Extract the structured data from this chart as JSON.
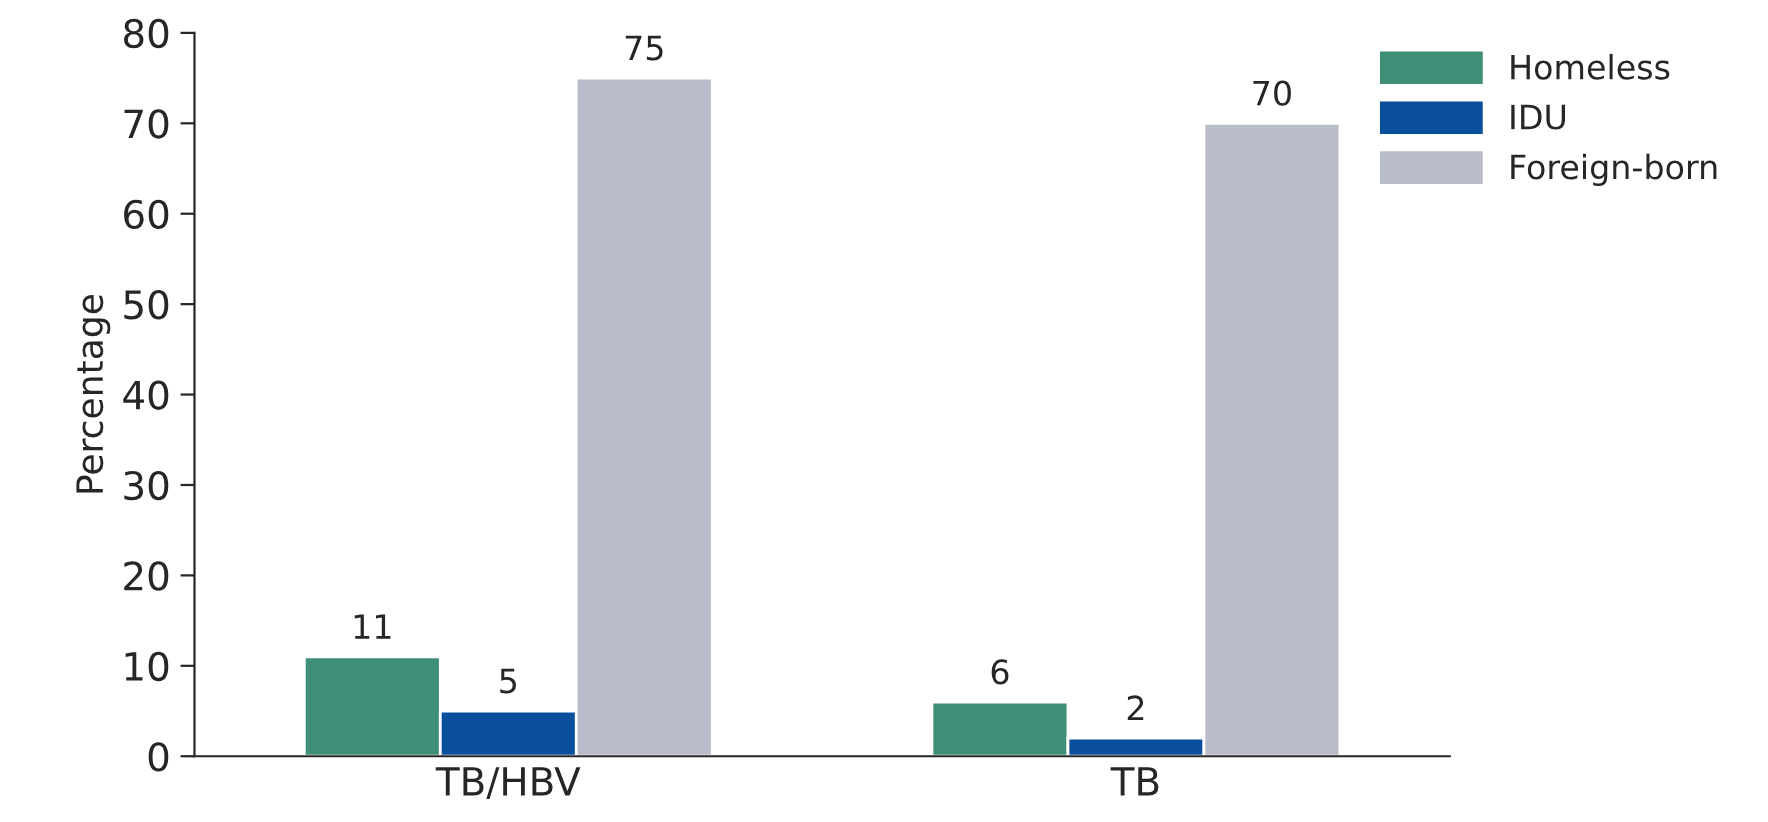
{
  "chart_data": {
    "type": "bar",
    "ylabel": "Percentage",
    "categories": [
      "TB/HBV",
      "TB"
    ],
    "series": [
      {
        "name": "Homeless",
        "color": "#3f8f78",
        "values": [
          11,
          6
        ]
      },
      {
        "name": "IDU",
        "color": "#0a4f9b",
        "values": [
          5,
          2
        ]
      },
      {
        "name": "Foreign-born",
        "color": "#b9bccb",
        "values": [
          75,
          70
        ]
      }
    ],
    "ylim": [
      0,
      80
    ],
    "yticks": [
      0,
      10,
      20,
      30,
      40,
      50,
      60,
      70,
      80
    ],
    "data_labels": true,
    "legend": "top right",
    "grid": false
  }
}
